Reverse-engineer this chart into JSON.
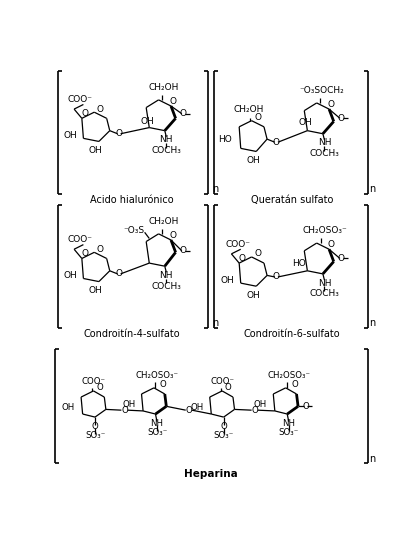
{
  "title": "Heparina",
  "label1": "Acido hialurónico",
  "label2": "Queratán sulfato",
  "label3": "Condroitín-4-sulfato",
  "label4": "Condroitín-6-sulfato",
  "bg_color": "#ffffff",
  "text_color": "#000000",
  "line_color": "#000000",
  "fig_width": 4.13,
  "fig_height": 5.37,
  "dpi": 100
}
